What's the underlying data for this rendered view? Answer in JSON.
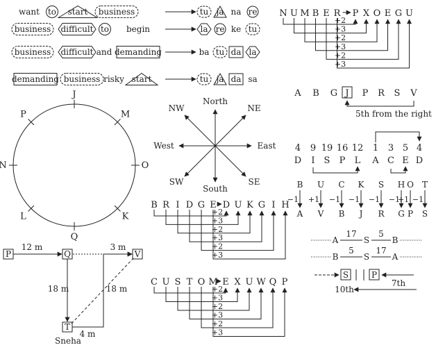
{
  "code_sentences": {
    "rows": [
      {
        "words": [
          "want",
          "to",
          "start",
          "business"
        ],
        "codes": [
          "tu",
          "ja",
          "na",
          "re"
        ]
      },
      {
        "words": [
          "business",
          "difficult",
          "to",
          "begin"
        ],
        "codes": [
          "la",
          "re",
          "ke",
          "tu"
        ]
      },
      {
        "words": [
          "business",
          "difficult",
          "and",
          "demanding"
        ],
        "codes": [
          "ba",
          "tu",
          "da",
          "la"
        ]
      },
      {
        "words": [
          "demanding",
          "business",
          "risky",
          "start"
        ],
        "codes": [
          "tu",
          "ja",
          "da",
          "sa"
        ]
      }
    ]
  },
  "number_code": {
    "word": [
      "N",
      "U",
      "M",
      "B",
      "E",
      "R"
    ],
    "code": [
      "P",
      "X",
      "O",
      "E",
      "G",
      "U"
    ],
    "shifts": [
      "+2",
      "+3",
      "+2",
      "+3",
      "+2",
      "+3"
    ]
  },
  "position_puzzle": {
    "letters": [
      "A",
      "B",
      "G",
      "J",
      "P",
      "R",
      "S",
      "V"
    ],
    "boxed": "J",
    "note": "5th from the right"
  },
  "circle": {
    "labels": [
      "J",
      "M",
      "O",
      "K",
      "Q",
      "L",
      "N",
      "P"
    ]
  },
  "compass": {
    "north": "North",
    "south": "South",
    "east": "East",
    "west": "West",
    "ne": "NE",
    "nw": "NW",
    "se": "SE",
    "sw": "SW"
  },
  "number_letter": {
    "numbers": [
      "4",
      "9",
      "19",
      "16",
      "12",
      "1",
      "3",
      "5",
      "4"
    ],
    "letters": [
      "D",
      "I",
      "S",
      "P",
      "L",
      "A",
      "C",
      "E",
      "D"
    ]
  },
  "letter_shift": {
    "top": [
      "B",
      "U",
      "C",
      "K",
      "S",
      "H",
      "O",
      "T"
    ],
    "ops": [
      "−1",
      "+1",
      "−1",
      "−1",
      "−1",
      "−1",
      "+1",
      "−1"
    ],
    "bottom": [
      "A",
      "V",
      "B",
      "J",
      "R",
      "G",
      "P",
      "S"
    ]
  },
  "bridge_code": {
    "word": [
      "B",
      "R",
      "I",
      "D",
      "G",
      "E"
    ],
    "code": [
      "D",
      "U",
      "K",
      "G",
      "I",
      "H"
    ],
    "shifts": [
      "+2",
      "+3",
      "+2",
      "+3",
      "+2",
      "+3"
    ]
  },
  "custom_code": {
    "word": [
      "C",
      "U",
      "S",
      "T",
      "O",
      "M"
    ],
    "code": [
      "E",
      "X",
      "U",
      "W",
      "Q",
      "P"
    ],
    "shifts": [
      "+2",
      "+3",
      "+2",
      "+3",
      "+2",
      "+3"
    ]
  },
  "distance": {
    "points": [
      "P",
      "Q",
      "V",
      "T"
    ],
    "d1": "12 m",
    "d2": "3 m",
    "d3": "18 m",
    "d4": "18 m",
    "d5": "4 m",
    "person": "Sneha"
  },
  "ranking": {
    "row1": {
      "left": "A",
      "n1": "17",
      "mid": "S",
      "n2": "5",
      "right": "B"
    },
    "row2": {
      "left": "B",
      "n1": "5",
      "mid": "S",
      "n2": "17",
      "right": "A"
    },
    "boxes": [
      "S",
      "P"
    ],
    "seventh": "7th",
    "tenth": "10th"
  }
}
